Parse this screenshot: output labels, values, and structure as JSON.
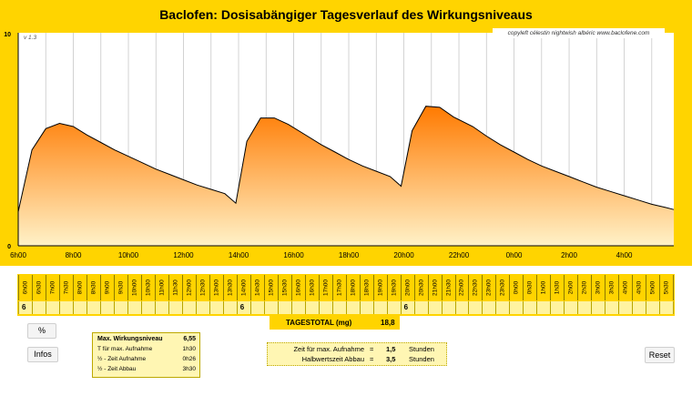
{
  "title": "Baclofen: Dosisabängiger Tagesverlauf des Wirkungsniveaus",
  "copyright": "copyleft  célestin  nightwish  albéric  www.baclofene.com",
  "version": "v 1.3",
  "chart_data": {
    "type": "area",
    "ylim": [
      0,
      10
    ],
    "y_ticks": [
      "0",
      "10"
    ],
    "x_tick_labels": [
      "6h00",
      "8h00",
      "10h00",
      "12h00",
      "14h00",
      "16h00",
      "18h00",
      "20h00",
      "22h00",
      "0h00",
      "2h00",
      "4h00"
    ],
    "x_start_hour": 6,
    "x_end_hour": 29.8,
    "x": [
      6,
      6.5,
      7,
      7.5,
      8,
      8.5,
      9,
      9.5,
      10,
      10.5,
      11,
      11.5,
      12,
      12.5,
      13,
      13.5,
      13.9,
      14.3,
      14.8,
      15.3,
      15.8,
      16.5,
      17,
      17.5,
      18,
      18.5,
      19,
      19.5,
      19.9,
      20.3,
      20.8,
      21.3,
      21.8,
      22.5,
      23,
      23.5,
      24,
      24.5,
      25,
      25.5,
      26,
      26.5,
      27,
      27.5,
      28,
      28.5,
      29,
      29.5,
      29.8
    ],
    "y": [
      1.6,
      4.5,
      5.5,
      5.75,
      5.6,
      5.2,
      4.85,
      4.5,
      4.2,
      3.9,
      3.6,
      3.35,
      3.1,
      2.85,
      2.65,
      2.45,
      2.0,
      4.9,
      6.0,
      6.0,
      5.7,
      5.15,
      4.75,
      4.4,
      4.05,
      3.75,
      3.5,
      3.25,
      2.8,
      5.4,
      6.55,
      6.5,
      6.05,
      5.6,
      5.15,
      4.75,
      4.4,
      4.05,
      3.75,
      3.5,
      3.25,
      3.0,
      2.75,
      2.55,
      2.35,
      2.15,
      1.95,
      1.8,
      1.7
    ]
  },
  "time_slots": [
    "6h00",
    "6h30",
    "7h00",
    "7h30",
    "8h00",
    "8h30",
    "9h00",
    "9h30",
    "10h00",
    "10h30",
    "11h00",
    "11h30",
    "12h00",
    "12h30",
    "13h00",
    "13h30",
    "14h00",
    "14h30",
    "15h00",
    "15h30",
    "16h00",
    "16h30",
    "17h00",
    "17h30",
    "18h00",
    "18h30",
    "19h00",
    "19h30",
    "20h00",
    "20h30",
    "21h00",
    "21h30",
    "22h00",
    "22h30",
    "23h00",
    "23h30",
    "0h00",
    "0h30",
    "1h00",
    "1h30",
    "2h00",
    "2h30",
    "3h00",
    "3h30",
    "4h00",
    "4h30",
    "5h00",
    "5h30"
  ],
  "dose_row": [
    {
      "slot": 0,
      "value": "6"
    },
    {
      "slot": 16,
      "value": "6"
    },
    {
      "slot": 28,
      "value": "6"
    }
  ],
  "buttons": {
    "percent": "%",
    "infos": "Infos",
    "reset": "Reset"
  },
  "info_box": {
    "max_label": "Max. Wirkungsniveau",
    "max_value": "6,55",
    "t_max_label": "T für max. Aufnahme",
    "t_max_value": "1h30",
    "half_up_label": "½ - Zeit Aufnahme",
    "half_up_value": "0h26",
    "half_down_label": "½ - Zeit Abbau",
    "half_down_value": "3h30"
  },
  "tagestotal": {
    "label": "TAGESTOTAL (mg)",
    "value": "18,8"
  },
  "params": {
    "zeit_label": "Zeit für max. Aufnahme",
    "zeit_eq": "=",
    "zeit_value": "1,5",
    "zeit_unit": "Stunden",
    "halb_label": "Halbwertszeit Abbau",
    "halb_eq": "=",
    "halb_value": "3,5",
    "halb_unit": "Stunden"
  },
  "colors": {
    "background": "#ffd400",
    "fill_top": "#ff7a00",
    "fill_bottom": "#fff0c0"
  }
}
